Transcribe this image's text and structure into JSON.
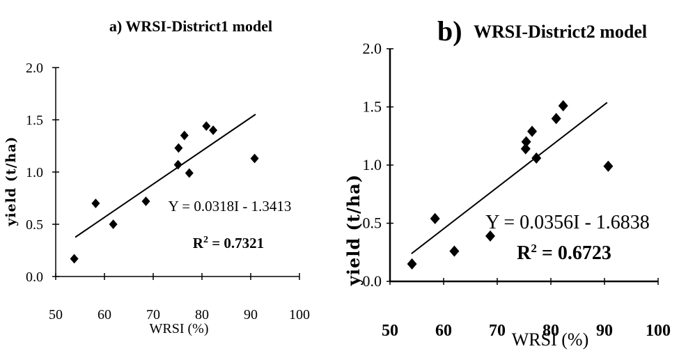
{
  "chart_data": [
    {
      "type": "scatter",
      "title": "a) WRSI-District1 model",
      "xlabel": "WRSI (%)",
      "ylabel": "yield (t/ha)",
      "xlim": [
        50,
        100
      ],
      "ylim": [
        0.0,
        2.0
      ],
      "x_ticks": [
        "50",
        "60",
        "70",
        "80",
        "90",
        "100"
      ],
      "y_ticks": [
        "0.0",
        "0.5",
        "1.0",
        "1.5",
        "2.0"
      ],
      "points": [
        {
          "x": 53.8,
          "y": 0.17
        },
        {
          "x": 58.2,
          "y": 0.7
        },
        {
          "x": 61.8,
          "y": 0.5
        },
        {
          "x": 68.5,
          "y": 0.72
        },
        {
          "x": 75.1,
          "y": 1.07
        },
        {
          "x": 75.2,
          "y": 1.23
        },
        {
          "x": 76.4,
          "y": 1.35
        },
        {
          "x": 77.4,
          "y": 0.99
        },
        {
          "x": 80.9,
          "y": 1.44
        },
        {
          "x": 82.3,
          "y": 1.4
        },
        {
          "x": 90.8,
          "y": 1.13
        }
      ],
      "trendline": {
        "slope": 0.0318,
        "intercept": -1.3413,
        "x_range": [
          54,
          91
        ]
      },
      "equation_label": "Y = 0.0318I - 1.3413",
      "r2_prefix": "R",
      "r2_sup": "2",
      "r2_value": " = 0.7321",
      "marker": "diamond",
      "grid": false
    },
    {
      "type": "scatter",
      "title_prefix": "b)",
      "title": "WRSI-District2 model",
      "xlabel": "WRSI (%)",
      "ylabel": "yield (t/ha)",
      "xlim": [
        50,
        100
      ],
      "ylim": [
        0.0,
        2.0
      ],
      "x_ticks": [
        "50",
        "60",
        "70",
        "80",
        "90",
        "100"
      ],
      "y_ticks": [
        "2.0",
        "1.5",
        "1.0",
        "0.5",
        "0.0"
      ],
      "points": [
        {
          "x": 54.1,
          "y": 0.15
        },
        {
          "x": 58.4,
          "y": 0.54
        },
        {
          "x": 62.0,
          "y": 0.26
        },
        {
          "x": 68.7,
          "y": 0.39
        },
        {
          "x": 75.3,
          "y": 1.14
        },
        {
          "x": 75.4,
          "y": 1.2
        },
        {
          "x": 76.5,
          "y": 1.29
        },
        {
          "x": 77.3,
          "y": 1.06
        },
        {
          "x": 81.0,
          "y": 1.4
        },
        {
          "x": 82.3,
          "y": 1.51
        },
        {
          "x": 90.7,
          "y": 0.99
        }
      ],
      "trendline": {
        "slope": 0.0356,
        "intercept": -1.6838,
        "x_range": [
          54,
          90.5
        ]
      },
      "equation_label": "Y = 0.0356I - 1.6838",
      "r2_prefix": "R",
      "r2_sup": "2",
      "r2_value": " = 0.6723",
      "marker": "diamond",
      "grid": false
    }
  ]
}
